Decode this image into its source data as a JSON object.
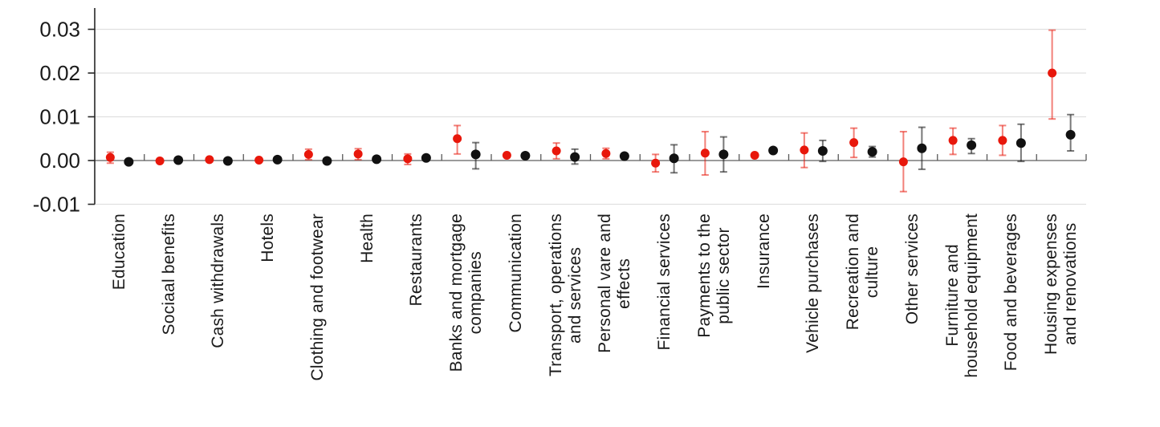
{
  "chart_data": {
    "type": "scatter",
    "subtype": "point-estimates-with-error-bars",
    "title": "",
    "xlabel": "",
    "ylabel": "",
    "legend": "none",
    "grid": "horizontal",
    "background": "#ffffff",
    "ylim": [
      -0.0105,
      0.0345
    ],
    "y_tick_labels": [
      "0.03",
      "0.02",
      "0.01",
      "0.00",
      "-0.01"
    ],
    "y_tick_values": [
      0.03,
      0.02,
      0.01,
      0.0,
      -0.01
    ],
    "gridline_values": [
      0.03,
      0.02,
      0.01,
      -0.01
    ],
    "categories": [
      "Education",
      "Sociaal benefits",
      "Cash withdrawals",
      "Hotels",
      "Clothing and footwear",
      "Health",
      "Restaurants",
      "Banks and mortgage\ncompanies",
      "Communication",
      "Transport, operations\nand services",
      "Personal vare and\neffects",
      "Financial services",
      "Payments to the\npublic sector",
      "Insurance",
      "Vehicle purchases",
      "Recreation and\nculture",
      "Other services",
      "Furniture and\nhousehold equipment",
      "Food and beverages",
      "Housing expenses\nand renovations"
    ],
    "series": [
      {
        "name": "red",
        "color": "#e8170b",
        "whisker_color": "rgba(232,23,11,0.55)",
        "values": [
          0.0007,
          -0.0001,
          0.0002,
          0.0001,
          0.0014,
          0.0015,
          0.0004,
          0.005,
          0.0012,
          0.0022,
          0.0016,
          -0.0006,
          0.0017,
          0.0012,
          0.0024,
          0.0041,
          -0.0003,
          0.0046,
          0.0046,
          0.02
        ],
        "ci_low": [
          -0.0006,
          -0.0005,
          -0.0003,
          -0.0003,
          0.0002,
          0.0002,
          -0.0009,
          0.0015,
          0.0007,
          0.0004,
          0.0004,
          -0.0026,
          -0.0033,
          0.0007,
          -0.0016,
          0.0007,
          -0.0071,
          0.0014,
          0.0012,
          0.0095
        ],
        "ci_high": [
          0.0019,
          0.0004,
          0.0006,
          0.0005,
          0.0026,
          0.0027,
          0.0015,
          0.008,
          0.0017,
          0.004,
          0.0028,
          0.0014,
          0.0066,
          0.0017,
          0.0063,
          0.0074,
          0.0066,
          0.0074,
          0.008,
          0.0298
        ]
      },
      {
        "name": "black",
        "color": "#111111",
        "whisker_color": "rgba(30,30,30,0.6)",
        "values": [
          -0.0003,
          0.0001,
          -0.0001,
          0.0002,
          -0.0001,
          0.0003,
          0.0006,
          0.0014,
          0.0011,
          0.0008,
          0.001,
          0.0005,
          0.0014,
          0.0023,
          0.0022,
          0.002,
          0.0028,
          0.0035,
          0.004,
          0.0059
        ],
        "ci_low": [
          -0.0007,
          -0.0002,
          -0.0004,
          -0.0001,
          -0.0005,
          -0.0002,
          0.0002,
          -0.0019,
          0.0008,
          -0.0008,
          0.0007,
          -0.0028,
          -0.0026,
          0.002,
          -0.0002,
          0.0008,
          -0.002,
          0.0016,
          -0.0002,
          0.0022
        ],
        "ci_high": [
          0.0001,
          0.0003,
          0.0001,
          0.0004,
          0.0004,
          0.0008,
          0.001,
          0.0041,
          0.0014,
          0.0026,
          0.0013,
          0.0036,
          0.0054,
          0.0026,
          0.0046,
          0.0032,
          0.0076,
          0.005,
          0.0083,
          0.0105
        ]
      }
    ]
  },
  "colors": {
    "background": "#ffffff",
    "gridline": "#e0e0e0",
    "zero_line": "#7a7a7a",
    "axis_line": "#262626",
    "category_tick": "#595959",
    "text": "#1a1a1a"
  }
}
